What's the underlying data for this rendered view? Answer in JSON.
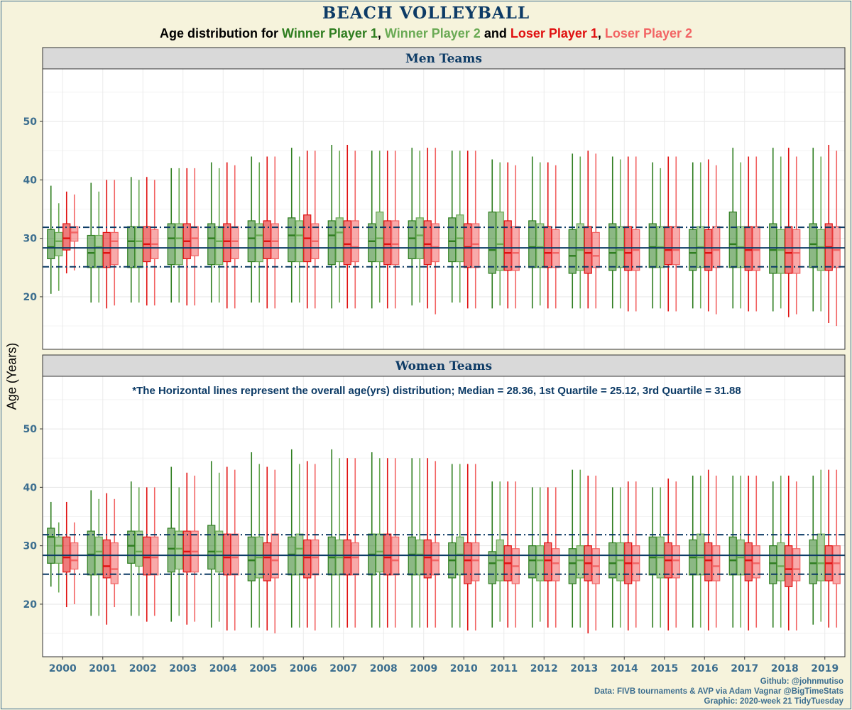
{
  "title": "BEACH VOLLEYBALL",
  "subtitle": {
    "prefix": "Age distribution for ",
    "series": [
      {
        "name": "Winner Player 1",
        "color": "#2e7d1f"
      },
      {
        "name": "Winner Player 2",
        "color": "#6aaa54"
      },
      {
        "name": "Loser Player 1",
        "color": "#e01010"
      },
      {
        "name": "Loser Player 2",
        "color": "#f26464"
      }
    ],
    "sep1": ", ",
    "sep2": " and ",
    "sep3": ", "
  },
  "ylabel": "Age (Years)",
  "caption": {
    "line1": "Github: @johnmutiso",
    "line2": "Data: FIVB tournaments & AVP via Adam Vagnar @BigTimeStats",
    "line3": "Graphic: 2020-week 21 TidyTuesday"
  },
  "colors": {
    "background": "#f6f3dc",
    "strip": "#d9d9d9",
    "strip_text": "#0d3b66",
    "ref_line": "#0d3b66",
    "tick_text": "#3c6e8f"
  },
  "chart_data": {
    "type": "boxplot",
    "categories": [
      "2000",
      "2001",
      "2002",
      "2003",
      "2004",
      "2005",
      "2006",
      "2007",
      "2008",
      "2009",
      "2010",
      "2011",
      "2012",
      "2013",
      "2014",
      "2015",
      "2016",
      "2017",
      "2018",
      "2019"
    ],
    "ylim": [
      11,
      59
    ],
    "yticks": [
      20,
      30,
      40,
      50
    ],
    "reference_lines": {
      "median": 28.36,
      "q1": 25.12,
      "q3": 31.88
    },
    "note": "*The Horizontal lines represent the overall age(yrs) distribution; Median = 28.36, 1st Quartile = 25.12, 3rd Quartile = 31.88",
    "panels": [
      {
        "name": "Men Teams",
        "series": [
          {
            "name": "Winner Player 1",
            "q1": [
              26.5,
              25,
              25,
              25.5,
              25.5,
              26,
              26,
              25.5,
              26,
              26.5,
              26,
              24,
              25,
              24,
              24.5,
              25,
              24.5,
              25,
              24,
              25
            ],
            "median": [
              28.5,
              27.5,
              29.5,
              30,
              30,
              30,
              30.5,
              30.5,
              29.5,
              30,
              29.5,
              28,
              28.5,
              27,
              27.5,
              28.5,
              27.5,
              29,
              28,
              29
            ],
            "q3": [
              31.5,
              30.5,
              32,
              32.5,
              32.5,
              33,
              33.5,
              33,
              32.5,
              33,
              33.5,
              34.5,
              33,
              31.5,
              32.5,
              32.5,
              31.5,
              34.5,
              32.5,
              32.5
            ],
            "low": [
              20.5,
              19,
              19,
              19,
              19,
              19,
              19,
              18,
              18,
              18.5,
              19,
              18,
              18,
              18,
              18,
              18,
              18,
              18,
              17.5,
              17.5
            ],
            "high": [
              39,
              39.5,
              40.5,
              42,
              43,
              44,
              45.5,
              46,
              45,
              45.5,
              45,
              43.5,
              44,
              44.5,
              44,
              43,
              43,
              45.5,
              45.5,
              45.5
            ]
          },
          {
            "name": "Winner Player 2",
            "q1": [
              27,
              25,
              25,
              25.5,
              25.5,
              26,
              26,
              26,
              26,
              26.5,
              26,
              24.5,
              25,
              24.5,
              25,
              25,
              25,
              25,
              24,
              24.5
            ],
            "median": [
              29.5,
              28.5,
              29.5,
              30,
              29.5,
              30.5,
              30.5,
              31,
              30,
              30.5,
              30,
              29,
              28.5,
              28,
              28,
              28.5,
              28.5,
              28.5,
              28,
              28.5
            ],
            "q3": [
              31,
              30.5,
              32,
              32.5,
              32,
              32.5,
              33,
              33.5,
              34.5,
              33.5,
              34,
              34.5,
              32.5,
              32.5,
              32,
              32,
              32,
              32,
              31.5,
              31.5
            ],
            "low": [
              21,
              19,
              19,
              19,
              19,
              19,
              19,
              19,
              19,
              19,
              19,
              18.5,
              18.5,
              18,
              18,
              18,
              18,
              18,
              18,
              17.5
            ],
            "high": [
              36,
              38,
              40,
              42,
              42,
              43,
              44,
              45,
              45,
              45,
              45,
              43,
              43,
              44,
              43.5,
              42,
              43,
              43,
              44,
              44
            ]
          },
          {
            "name": "Loser Player 1",
            "q1": [
              28,
              25,
              26,
              26.5,
              26,
              26.5,
              26,
              25.5,
              25.5,
              25.5,
              25,
              24.5,
              25,
              24,
              24.5,
              25.5,
              24.5,
              24.5,
              24,
              24.5
            ],
            "median": [
              30,
              27.5,
              29,
              29.5,
              29.5,
              29.5,
              30,
              29,
              29,
              29,
              28.5,
              27.5,
              27.5,
              27.5,
              27.5,
              28,
              27.5,
              28,
              27.5,
              28.5
            ],
            "q3": [
              32.5,
              31,
              32,
              32.5,
              32.5,
              33,
              34,
              33,
              33,
              33,
              32.5,
              33,
              32,
              32,
              32,
              32,
              31.5,
              32,
              32,
              32.5
            ],
            "low": [
              24,
              18,
              18.5,
              18.5,
              18,
              18,
              18,
              18,
              18,
              18,
              18,
              18,
              18,
              18,
              17.5,
              17.5,
              17.5,
              17.5,
              16.5,
              15.5
            ],
            "high": [
              38,
              40,
              40.5,
              42,
              43,
              44,
              45,
              46,
              45,
              45.5,
              45,
              43,
              43,
              45,
              44,
              44,
              43.5,
              44,
              45.5,
              46
            ]
          },
          {
            "name": "Loser Player 2",
            "q1": [
              29.5,
              25.5,
              26.5,
              27,
              26.5,
              26.5,
              26.5,
              26,
              25.5,
              26,
              25,
              24.5,
              25,
              25,
              24.5,
              25.5,
              25,
              24.5,
              24,
              25
            ],
            "median": [
              31,
              29.5,
              29,
              30,
              29.5,
              29.5,
              29.5,
              28.5,
              29,
              28.5,
              29,
              27.5,
              27.5,
              27,
              28,
              28,
              28,
              28,
              27.5,
              28
            ],
            "q3": [
              32,
              31,
              31.5,
              32,
              32,
              32.5,
              32.5,
              33,
              33,
              32.5,
              32.5,
              32,
              31.5,
              31,
              31.5,
              32,
              32,
              32,
              31.5,
              32
            ],
            "low": [
              24.5,
              18.5,
              18.5,
              18.5,
              18,
              18,
              18,
              18,
              18,
              17,
              18,
              18,
              18,
              18,
              17.5,
              17.5,
              17,
              17.5,
              17,
              15
            ],
            "high": [
              37.5,
              40,
              40,
              42,
              42.5,
              44,
              45,
              45,
              45,
              45.5,
              45,
              42.5,
              42.5,
              44.5,
              44,
              44,
              42.5,
              44,
              44,
              45
            ]
          }
        ]
      },
      {
        "name": "Women Teams",
        "series": [
          {
            "name": "Winner Player 1",
            "q1": [
              27,
              25,
              27,
              25.5,
              26,
              24,
              25,
              25,
              25,
              25,
              24.5,
              23.5,
              24.5,
              23.5,
              24.5,
              25,
              25,
              25,
              23.5,
              23.5
            ],
            "median": [
              31.5,
              28.5,
              30,
              29.5,
              29,
              27.5,
              28.5,
              28,
              28.5,
              28.5,
              27.5,
              27,
              27.5,
              27,
              27,
              28,
              28,
              27.5,
              27,
              27
            ],
            "q3": [
              33,
              32.5,
              32.5,
              33,
              33.5,
              31.5,
              31.5,
              31.5,
              32,
              31.5,
              30.5,
              29,
              30,
              29.5,
              30.5,
              31.5,
              31,
              31.5,
              30,
              31
            ],
            "low": [
              23,
              18,
              18,
              17,
              16,
              16,
              16,
              16,
              16,
              16,
              16,
              16,
              16,
              16,
              16,
              16,
              16,
              16,
              16,
              16.5
            ],
            "high": [
              37.5,
              39.5,
              41,
              43.5,
              44.5,
              46,
              46.5,
              46.5,
              46,
              45,
              44,
              41,
              40,
              43,
              40,
              40,
              42,
              42,
              41,
              42
            ]
          },
          {
            "name": "Winner Player 2",
            "q1": [
              27,
              25,
              26.5,
              26,
              25.5,
              24.5,
              25,
              25,
              25.5,
              25,
              25,
              24,
              24,
              24.5,
              24,
              24.5,
              25,
              25,
              24,
              24
            ],
            "median": [
              30,
              29,
              29,
              29.5,
              29,
              28,
              29.5,
              28,
              29,
              28.5,
              28.5,
              27.5,
              27.5,
              27.5,
              27.5,
              28,
              28,
              28,
              26.5,
              27
            ],
            "q3": [
              31.5,
              31.5,
              32.5,
              32.5,
              32.5,
              31.5,
              32,
              31,
              32,
              31,
              31.5,
              31,
              30,
              30,
              30.5,
              31.5,
              32,
              31,
              30.5,
              32
            ],
            "low": [
              22,
              18,
              18,
              18,
              17,
              16,
              16,
              16,
              16,
              16,
              16,
              17,
              17,
              16,
              16,
              16,
              16,
              16,
              16,
              17
            ],
            "high": [
              34,
              38,
              40,
              40,
              42.5,
              44,
              44,
              45,
              45,
              45,
              44,
              41,
              40,
              43,
              40,
              40,
              42,
              42,
              42,
              43
            ]
          },
          {
            "name": "Loser Player 1",
            "q1": [
              25.5,
              24.5,
              25,
              25.5,
              25,
              24,
              24.5,
              25,
              25,
              24.5,
              23.5,
              24,
              24,
              24,
              23.5,
              24.5,
              24,
              24,
              23,
              24
            ],
            "median": [
              28,
              26.5,
              28,
              29,
              28,
              28,
              28,
              28,
              28,
              28,
              27.5,
              27,
              27.5,
              27,
              27,
              27.5,
              27.5,
              27.5,
              26,
              27
            ],
            "q3": [
              31.5,
              31,
              31.5,
              32.5,
              32,
              30.5,
              31,
              31,
              32,
              31,
              30.5,
              30,
              30.5,
              30,
              30.5,
              30.5,
              30.5,
              30.5,
              30,
              30
            ],
            "low": [
              19.5,
              16.5,
              17,
              16.5,
              15.5,
              15.5,
              16,
              16,
              16,
              16,
              15.5,
              16,
              16,
              15,
              15.5,
              15.5,
              15.5,
              15.5,
              15.5,
              16
            ],
            "high": [
              37.5,
              39,
              40,
              42.5,
              43.5,
              43.5,
              44.5,
              45,
              45,
              45,
              44,
              41,
              40,
              42,
              41,
              41.5,
              43,
              42,
              42,
              43
            ]
          },
          {
            "name": "Loser Player 2",
            "q1": [
              26,
              23.5,
              25,
              25.5,
              25,
              24.5,
              25,
              25,
              25,
              25,
              24,
              23.5,
              24,
              23.5,
              24,
              24.5,
              24,
              24.5,
              24,
              23.5
            ],
            "median": [
              27.5,
              26,
              28,
              29,
              28,
              27.5,
              28,
              28,
              27.5,
              27.5,
              27.5,
              26.5,
              27,
              26.5,
              27,
              27.5,
              26.5,
              27,
              26,
              27
            ],
            "q3": [
              30.5,
              30.5,
              31.5,
              32.5,
              32,
              32,
              31,
              30.5,
              31.5,
              30.5,
              30.5,
              29.5,
              29.5,
              29.5,
              30,
              30,
              30,
              30,
              29.5,
              30
            ],
            "low": [
              20,
              19.5,
              18,
              17,
              15.5,
              15,
              15.5,
              16,
              16,
              16,
              15.5,
              16,
              16,
              15.5,
              16,
              16,
              16,
              16,
              15.5,
              16
            ],
            "high": [
              34,
              38,
              40,
              42,
              43,
              43,
              44,
              45,
              45,
              44.5,
              44,
              41,
              40,
              42,
              41,
              41,
              42,
              42,
              41,
              43
            ]
          }
        ]
      }
    ]
  }
}
